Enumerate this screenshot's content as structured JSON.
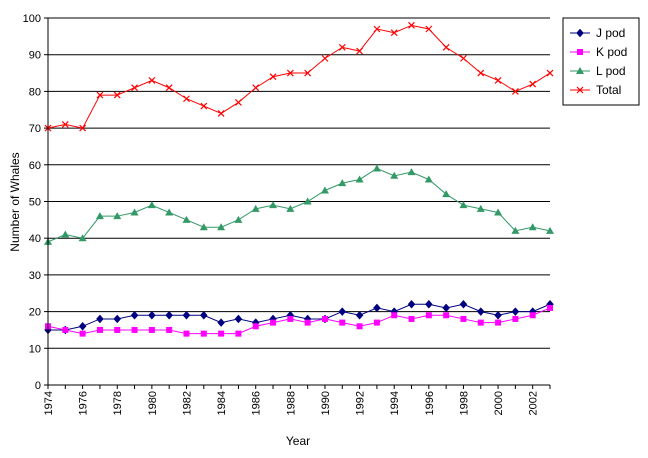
{
  "chart_data": {
    "type": "line",
    "title": "",
    "xlabel": "Year",
    "ylabel": "Number of Whales",
    "ylim": [
      0,
      100
    ],
    "y_ticks": [
      "0",
      "10",
      "20",
      "30",
      "40",
      "50",
      "60",
      "70",
      "80",
      "90",
      "100"
    ],
    "x_ticks": [
      "1974",
      "1976",
      "1978",
      "1980",
      "1982",
      "1984",
      "1986",
      "1988",
      "1990",
      "1992",
      "1994",
      "1996",
      "1998",
      "2000",
      "2002"
    ],
    "x": [
      1974,
      1975,
      1976,
      1977,
      1978,
      1979,
      1980,
      1981,
      1982,
      1983,
      1984,
      1985,
      1986,
      1987,
      1988,
      1989,
      1990,
      1991,
      1992,
      1993,
      1994,
      1995,
      1996,
      1997,
      1998,
      1999,
      2000,
      2001,
      2002,
      2003
    ],
    "grid": "horizontal",
    "legend_position": "right",
    "series": [
      {
        "name": "J pod",
        "color": "#000080",
        "marker": "diamond",
        "values": [
          15,
          15,
          16,
          18,
          18,
          19,
          19,
          19,
          19,
          19,
          17,
          18,
          17,
          18,
          19,
          18,
          18,
          20,
          19,
          21,
          20,
          22,
          22,
          21,
          22,
          20,
          19,
          20,
          20,
          22
        ]
      },
      {
        "name": "K pod",
        "color": "#ff00ff",
        "marker": "square",
        "values": [
          16,
          15,
          14,
          15,
          15,
          15,
          15,
          15,
          14,
          14,
          14,
          14,
          16,
          17,
          18,
          17,
          18,
          17,
          16,
          17,
          19,
          18,
          19,
          19,
          18,
          17,
          17,
          18,
          19,
          21
        ]
      },
      {
        "name": "L pod",
        "color": "#339966",
        "marker": "triangle",
        "values": [
          39,
          41,
          40,
          46,
          46,
          47,
          49,
          47,
          45,
          43,
          43,
          45,
          48,
          49,
          48,
          50,
          53,
          55,
          56,
          59,
          57,
          58,
          56,
          52,
          49,
          48,
          47,
          42,
          43,
          42
        ]
      },
      {
        "name": "Total",
        "color": "#ff0000",
        "marker": "x",
        "values": [
          70,
          71,
          70,
          79,
          79,
          81,
          83,
          81,
          78,
          76,
          74,
          77,
          81,
          84,
          85,
          85,
          89,
          92,
          91,
          97,
          96,
          98,
          97,
          92,
          89,
          85,
          83,
          80,
          82,
          85
        ]
      }
    ]
  }
}
